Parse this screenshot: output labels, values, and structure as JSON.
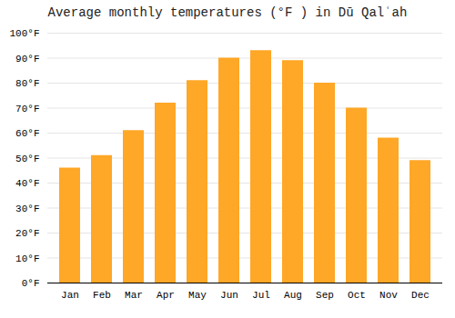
{
  "chart_data": {
    "type": "bar",
    "title": "Average monthly temperatures (°F ) in Dū Qalʿah",
    "categories": [
      "Jan",
      "Feb",
      "Mar",
      "Apr",
      "May",
      "Jun",
      "Jul",
      "Aug",
      "Sep",
      "Oct",
      "Nov",
      "Dec"
    ],
    "values": [
      46,
      51,
      61,
      72,
      81,
      90,
      93,
      89,
      80,
      70,
      58,
      49
    ],
    "color": "#FFA726",
    "ylim": [
      0,
      100
    ],
    "yticks": [
      {
        "value": 0,
        "label": "0°F"
      },
      {
        "value": 10,
        "label": "10°F"
      },
      {
        "value": 20,
        "label": "20°F"
      },
      {
        "value": 30,
        "label": "30°F"
      },
      {
        "value": 40,
        "label": "40°F"
      },
      {
        "value": 50,
        "label": "50°F"
      },
      {
        "value": 60,
        "label": "60°F"
      },
      {
        "value": 70,
        "label": "70°F"
      },
      {
        "value": 80,
        "label": "80°F"
      },
      {
        "value": 90,
        "label": "90°F"
      },
      {
        "value": 100,
        "label": "100°F"
      }
    ],
    "grid": true
  }
}
